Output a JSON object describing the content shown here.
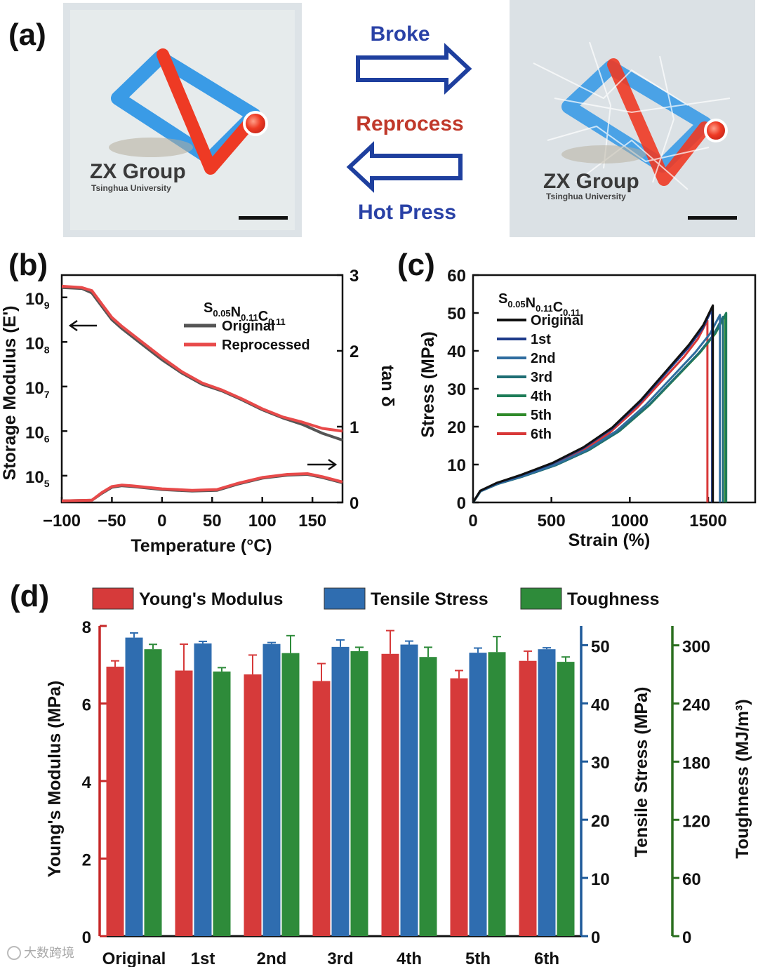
{
  "colors": {
    "red": "#d63a3a",
    "blue": "#2f6db0",
    "green": "#2e8b3a",
    "logo_blue": "#3a9be6",
    "logo_red": "#ee3a24",
    "arrow_blue": "#1e3f9e",
    "legend_red": "#c62828",
    "legend_blue": "#1e5a9a",
    "legend_green": "#2a6e1e"
  },
  "panel_a": {
    "label": "(a)",
    "arrow_top_label": "Broke",
    "arrow_mid_label": "Reprocess",
    "arrow_bottom_label": "Hot Press",
    "sample_title": "ZX Group",
    "sample_subtitle": "Tsinghua University"
  },
  "panel_b": {
    "label": "(b)"
  },
  "panel_c": {
    "label": "(c)"
  },
  "panel_d": {
    "label": "(d)"
  },
  "watermark": "大数跨境",
  "chart_data": [
    {
      "type": "line",
      "panel": "b",
      "xlabel": "Temperature (°C)",
      "ylabel": "Storage Modulus (E')",
      "y2label": "tan δ",
      "legend_title": "S0.05N0.11C0.11",
      "xlim": [
        -100,
        180
      ],
      "xticks": [
        -100,
        -50,
        0,
        50,
        100,
        150
      ],
      "ylim_log10": [
        4.4,
        9.5
      ],
      "yticks_log10": [
        5,
        6,
        7,
        8,
        9
      ],
      "y2lim": [
        0,
        3
      ],
      "y2ticks": [
        0,
        1,
        2,
        3
      ],
      "series": [
        {
          "name": "Original",
          "color": "#555555",
          "modulus_log10": [
            [
              -100,
              9.22
            ],
            [
              -80,
              9.2
            ],
            [
              -70,
              9.1
            ],
            [
              -60,
              8.8
            ],
            [
              -50,
              8.5
            ],
            [
              -40,
              8.3
            ],
            [
              -20,
              7.95
            ],
            [
              0,
              7.6
            ],
            [
              20,
              7.3
            ],
            [
              40,
              7.05
            ],
            [
              60,
              6.9
            ],
            [
              80,
              6.7
            ],
            [
              100,
              6.48
            ],
            [
              120,
              6.3
            ],
            [
              140,
              6.15
            ],
            [
              160,
              5.95
            ],
            [
              180,
              5.8
            ]
          ],
          "tan_delta": [
            [
              -100,
              0.02
            ],
            [
              -70,
              0.03
            ],
            [
              -60,
              0.12
            ],
            [
              -50,
              0.2
            ],
            [
              -40,
              0.22
            ],
            [
              -30,
              0.21
            ],
            [
              0,
              0.17
            ],
            [
              30,
              0.15
            ],
            [
              55,
              0.16
            ],
            [
              75,
              0.24
            ],
            [
              100,
              0.32
            ],
            [
              125,
              0.36
            ],
            [
              145,
              0.37
            ],
            [
              160,
              0.33
            ],
            [
              180,
              0.26
            ]
          ]
        },
        {
          "name": "Reprocessed",
          "color": "#e84a4a",
          "modulus_log10": [
            [
              -100,
              9.25
            ],
            [
              -80,
              9.22
            ],
            [
              -70,
              9.15
            ],
            [
              -60,
              8.85
            ],
            [
              -50,
              8.55
            ],
            [
              -40,
              8.35
            ],
            [
              -20,
              8.0
            ],
            [
              0,
              7.65
            ],
            [
              20,
              7.33
            ],
            [
              40,
              7.08
            ],
            [
              60,
              6.92
            ],
            [
              80,
              6.72
            ],
            [
              100,
              6.5
            ],
            [
              120,
              6.32
            ],
            [
              140,
              6.2
            ],
            [
              160,
              6.06
            ],
            [
              180,
              6.0
            ]
          ],
          "tan_delta": [
            [
              -100,
              0.02
            ],
            [
              -70,
              0.03
            ],
            [
              -60,
              0.13
            ],
            [
              -50,
              0.21
            ],
            [
              -40,
              0.23
            ],
            [
              -30,
              0.22
            ],
            [
              0,
              0.18
            ],
            [
              30,
              0.16
            ],
            [
              55,
              0.17
            ],
            [
              75,
              0.25
            ],
            [
              100,
              0.33
            ],
            [
              125,
              0.37
            ],
            [
              145,
              0.38
            ],
            [
              160,
              0.34
            ],
            [
              180,
              0.27
            ]
          ]
        }
      ]
    },
    {
      "type": "line",
      "panel": "c",
      "xlabel": "Strain (%)",
      "ylabel": "Stress (MPa)",
      "legend_title": "S0.05N0.11C0.11",
      "xlim": [
        0,
        1800
      ],
      "xticks": [
        0,
        500,
        1000,
        1500
      ],
      "ylim": [
        0,
        60
      ],
      "yticks": [
        0,
        10,
        20,
        30,
        40,
        50,
        60
      ],
      "series": [
        {
          "name": "Original",
          "color": "#111111",
          "break_strain": 1530,
          "peak_stress": 52
        },
        {
          "name": "1st",
          "color": "#1e3a8a",
          "break_strain": 1525,
          "peak_stress": 51
        },
        {
          "name": "2nd",
          "color": "#2f6c9f",
          "break_strain": 1575,
          "peak_stress": 49.5
        },
        {
          "name": "3rd",
          "color": "#1f6e74",
          "break_strain": 1595,
          "peak_stress": 49
        },
        {
          "name": "4th",
          "color": "#1d7c57",
          "break_strain": 1615,
          "peak_stress": 50
        },
        {
          "name": "5th",
          "color": "#2f8a2a",
          "break_strain": 1610,
          "peak_stress": 49.5
        },
        {
          "name": "6th",
          "color": "#d83838",
          "break_strain": 1495,
          "peak_stress": 48
        }
      ]
    },
    {
      "type": "bar",
      "panel": "d",
      "categories": [
        "Original",
        "1st",
        "2nd",
        "3rd",
        "4th",
        "5th",
        "6th"
      ],
      "ylabel": "Young's Modulus (MPa)",
      "y2label": "Tensile Stress (MPa)",
      "y3label": "Toughness (MJ/m³)",
      "ylim": [
        0,
        8
      ],
      "yticks": [
        0,
        2,
        4,
        6,
        8
      ],
      "y2lim": [
        0,
        53.3
      ],
      "y2ticks": [
        0,
        10,
        20,
        30,
        40,
        50
      ],
      "y3lim": [
        0,
        320
      ],
      "y3ticks": [
        0,
        60,
        120,
        180,
        240,
        300
      ],
      "series": [
        {
          "name": "Young's Modulus",
          "color": "#d63a3a",
          "axis": "left",
          "values": [
            6.95,
            6.85,
            6.75,
            6.58,
            7.28,
            6.65,
            7.1
          ],
          "errors": [
            0.15,
            0.68,
            0.5,
            0.45,
            0.6,
            0.2,
            0.25
          ]
        },
        {
          "name": "Tensile Stress",
          "color": "#2f6db0",
          "axis": "right1",
          "values": [
            51.3,
            50.3,
            50.2,
            49.7,
            50.1,
            48.7,
            49.3
          ],
          "errors": [
            0.8,
            0.35,
            0.25,
            1.2,
            0.6,
            0.8,
            0.25
          ]
        },
        {
          "name": "Toughness",
          "color": "#2e8b3a",
          "axis": "right2",
          "values": [
            296,
            273,
            292,
            294,
            288,
            293,
            283
          ],
          "errors": [
            5,
            4,
            18,
            4,
            10,
            16,
            5
          ]
        }
      ]
    }
  ]
}
